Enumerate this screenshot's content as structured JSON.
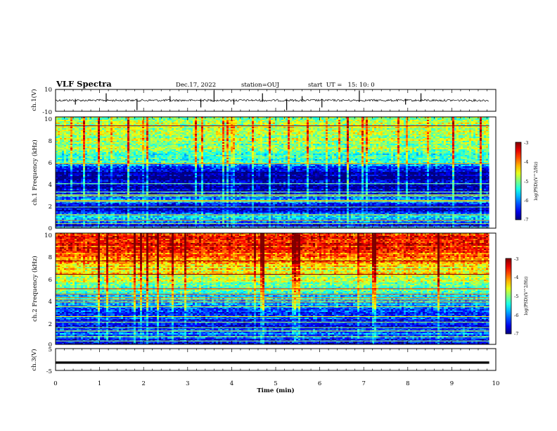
{
  "header": {
    "title": "VLF Spectra",
    "date": "Dec.17, 2022",
    "station": "station=OUJ",
    "start": "start  UT =   15: 10: 0"
  },
  "chart_data": [
    {
      "type": "line",
      "panel": "ch1-waveform",
      "ylabel": "ch.1(V)",
      "ylim": [
        -10,
        10
      ],
      "yticks": [
        10,
        -10
      ],
      "xlim": [
        0,
        10
      ],
      "baseline": 0,
      "spike_times": [
        0.45,
        1.15,
        1.85,
        2.6,
        3.3,
        3.6,
        4.05,
        4.7,
        5.25,
        5.6,
        6.05,
        6.9,
        7.95,
        8.3
      ]
    },
    {
      "type": "heatmap",
      "panel": "ch1-spectrogram",
      "ylabel": "ch.1 Frequency (kHz)",
      "ylim": [
        0,
        10
      ],
      "yticks": [
        0,
        2,
        4,
        6,
        8,
        10
      ],
      "xlim": [
        0,
        9.85
      ],
      "colorbar": {
        "label": "log(PSD)(V^2/Hz)",
        "range": [
          -7,
          -3
        ],
        "ticks": [
          -3,
          -4,
          -5,
          -6,
          -7
        ]
      },
      "profile": [
        [
          0.0,
          -6.6
        ],
        [
          0.5,
          -6.3
        ],
        [
          1.0,
          -5.6
        ],
        [
          1.5,
          -6.5
        ],
        [
          2.0,
          -6.7
        ],
        [
          2.5,
          -5.8
        ],
        [
          3.0,
          -6.3
        ],
        [
          3.5,
          -6.8
        ],
        [
          4.0,
          -6.6
        ],
        [
          4.5,
          -6.9
        ],
        [
          5.0,
          -6.8
        ],
        [
          5.5,
          -6.5
        ],
        [
          6.0,
          -5.2
        ],
        [
          6.5,
          -5.4
        ],
        [
          7.0,
          -4.9
        ],
        [
          7.5,
          -4.9
        ],
        [
          8.0,
          -4.8
        ],
        [
          8.5,
          -4.8
        ],
        [
          9.0,
          -4.8
        ],
        [
          9.5,
          -4.8
        ],
        [
          10.0,
          -5.0
        ]
      ],
      "lines_khz": [
        0.1,
        0.4,
        0.7,
        1.2,
        1.9,
        2.4,
        2.5,
        2.9,
        3.0,
        3.25,
        4.0,
        5.8,
        9.2
      ]
    },
    {
      "type": "heatmap",
      "panel": "ch2-spectrogram",
      "ylabel": "ch.2 Frequency (kHz)",
      "ylim": [
        0,
        10
      ],
      "yticks": [
        0,
        2,
        4,
        6,
        8,
        10
      ],
      "xlim": [
        0,
        9.85
      ],
      "colorbar": {
        "label": "log(PSD)(V^2/Hz)",
        "range": [
          -7,
          -3
        ],
        "ticks": [
          -3,
          -4,
          -5,
          -6,
          -7
        ]
      },
      "profile": [
        [
          0.0,
          -6.7
        ],
        [
          0.5,
          -6.4
        ],
        [
          1.0,
          -6.0
        ],
        [
          1.5,
          -6.5
        ],
        [
          2.0,
          -6.4
        ],
        [
          2.5,
          -6.1
        ],
        [
          3.0,
          -6.3
        ],
        [
          3.5,
          -5.9
        ],
        [
          4.0,
          -5.7
        ],
        [
          4.5,
          -5.4
        ],
        [
          5.0,
          -5.1
        ],
        [
          5.5,
          -4.9
        ],
        [
          6.0,
          -4.7
        ],
        [
          6.5,
          -4.4
        ],
        [
          7.0,
          -4.5
        ],
        [
          7.5,
          -4.1
        ],
        [
          8.0,
          -3.9
        ],
        [
          8.5,
          -3.7
        ],
        [
          9.0,
          -3.6
        ],
        [
          9.5,
          -3.6
        ],
        [
          10.0,
          -3.7
        ]
      ],
      "lines_khz": [
        0.3,
        0.7,
        1.2,
        1.5,
        2.0,
        2.5,
        3.4,
        3.8,
        4.0,
        4.2,
        4.5,
        5.0,
        6.3,
        7.5
      ]
    },
    {
      "type": "line",
      "panel": "ch3-waveform",
      "ylabel": "ch.3(V)",
      "ylim": [
        -5,
        5
      ],
      "yticks": [
        5,
        0,
        -5
      ],
      "xlim": [
        0,
        9.85
      ],
      "baseline": -1.4,
      "xlabel": "Time (min)",
      "xticks": [
        0,
        1,
        2,
        3,
        4,
        5,
        6,
        7,
        8,
        9,
        10
      ]
    }
  ]
}
